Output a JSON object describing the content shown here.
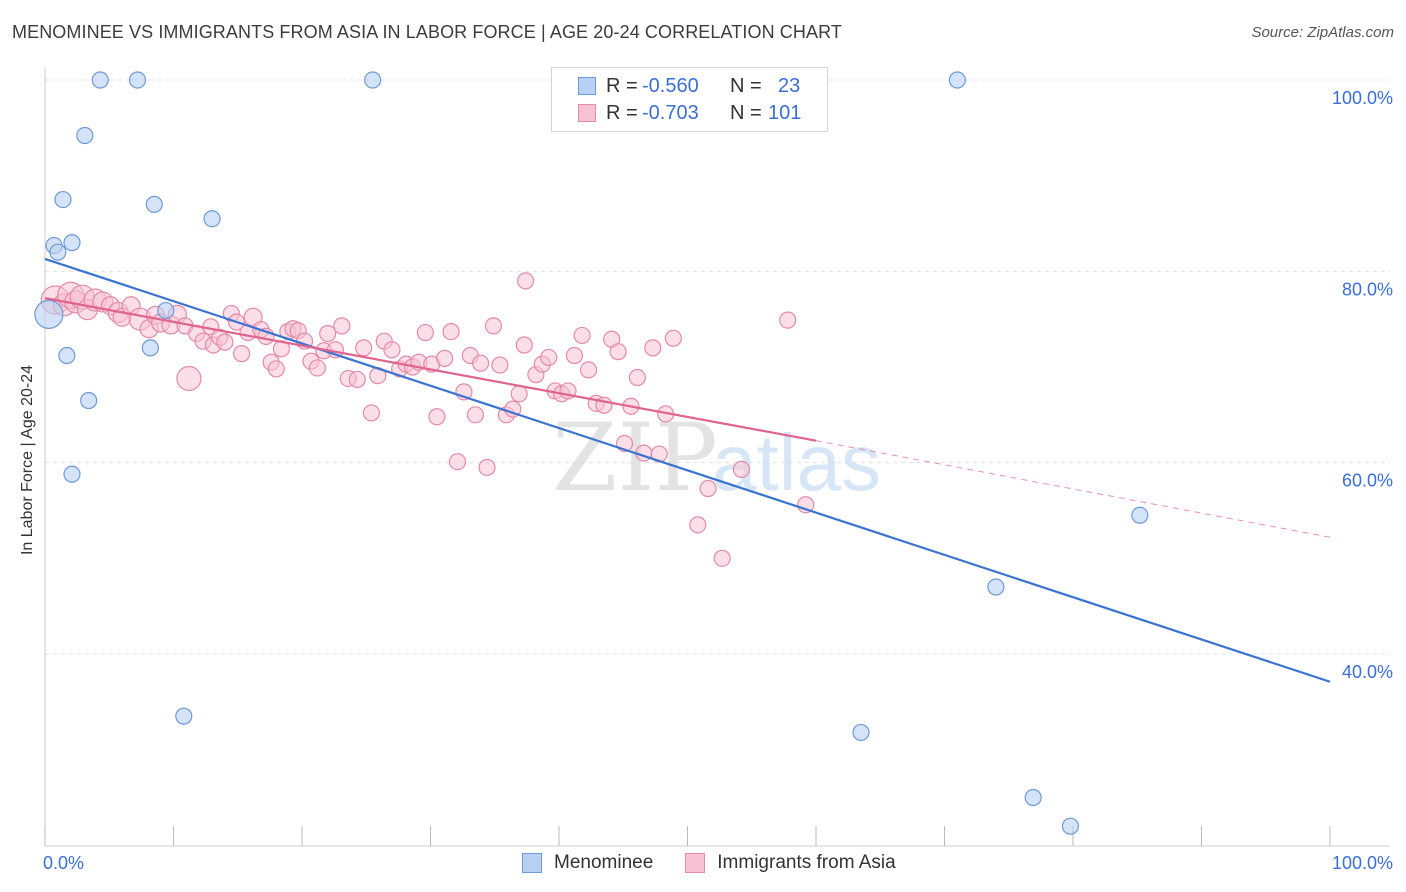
{
  "title": "MENOMINEE VS IMMIGRANTS FROM ASIA IN LABOR FORCE | AGE 20-24 CORRELATION CHART",
  "source": "Source: ZipAtlas.com",
  "watermark": {
    "zip": "ZIP",
    "atlas": "atlas"
  },
  "legend": {
    "series1": {
      "r_label": "R =",
      "r_value": "-0.560",
      "n_label": "N =",
      "n_value": "23"
    },
    "series2": {
      "r_label": "R =",
      "r_value": "-0.703",
      "n_label": "N =",
      "n_value": "101"
    }
  },
  "bottom_legend": {
    "series1": "Menominee",
    "series2": "Immigrants from Asia"
  },
  "colors": {
    "series1_fill": "#b8d0f2",
    "series1_stroke": "#6d9ad8",
    "series1_line": "#3a74d0",
    "series2_fill": "#f7c2d3",
    "series2_stroke": "#e58aa8",
    "series2_line": "#e0648e",
    "axis_text": "#3a6fd8",
    "grid": "#e0e0e0"
  },
  "chart_data": {
    "type": "scatter",
    "title": "MENOMINEE VS IMMIGRANTS FROM ASIA IN LABOR FORCE | AGE 20-24 CORRELATION CHART",
    "xlabel": "",
    "ylabel": "In Labor Force | Age 20-24",
    "xlim": [
      0,
      100
    ],
    "ylim": [
      20,
      102
    ],
    "x_tick_labels": [
      "0.0%",
      "100.0%"
    ],
    "y_ticks": [
      40,
      60,
      80,
      100
    ],
    "y_tick_labels": [
      "40.0%",
      "60.0%",
      "80.0%",
      "100.0%"
    ],
    "grid": true,
    "series": [
      {
        "name": "Menominee",
        "R": -0.56,
        "N": 23,
        "trend": {
          "x": [
            0,
            100
          ],
          "y": [
            81.3,
            37.1
          ],
          "dashed_extension": false
        },
        "points": [
          [
            0.3,
            75.5,
            14
          ],
          [
            0.7,
            82.7,
            8
          ],
          [
            1.0,
            82.0,
            8
          ],
          [
            1.4,
            87.5,
            8
          ],
          [
            2.1,
            83.0,
            8
          ],
          [
            1.7,
            71.2,
            8
          ],
          [
            2.1,
            58.8,
            8
          ],
          [
            3.1,
            94.2,
            8
          ],
          [
            3.4,
            66.5,
            8
          ],
          [
            4.3,
            100.0,
            8
          ],
          [
            7.2,
            100.0,
            8
          ],
          [
            8.2,
            72.0,
            8
          ],
          [
            8.5,
            87.0,
            8
          ],
          [
            9.4,
            75.9,
            8
          ],
          [
            10.8,
            33.5,
            8
          ],
          [
            13.0,
            85.5,
            8
          ],
          [
            25.5,
            100.0,
            8
          ],
          [
            71.0,
            100.0,
            8
          ],
          [
            63.5,
            31.8,
            8
          ],
          [
            74.0,
            47.0,
            8
          ],
          [
            76.9,
            25.0,
            8
          ],
          [
            79.8,
            22.0,
            8
          ],
          [
            85.2,
            54.5,
            8
          ]
        ]
      },
      {
        "name": "Immigrants from Asia",
        "R": -0.703,
        "N": 101,
        "trend": {
          "x": [
            0,
            60,
            100
          ],
          "y": [
            77.2,
            62.3,
            52.2
          ],
          "solid_until_x": 60
        },
        "points": [
          [
            0.8,
            77.0,
            14
          ],
          [
            1.5,
            76.5,
            11
          ],
          [
            2.0,
            77.5,
            13
          ],
          [
            2.4,
            76.8,
            11
          ],
          [
            2.9,
            77.3,
            12
          ],
          [
            3.3,
            76.0,
            10
          ],
          [
            3.9,
            77.0,
            11
          ],
          [
            4.5,
            76.8,
            10
          ],
          [
            5.1,
            76.4,
            9
          ],
          [
            5.7,
            75.7,
            10
          ],
          [
            6.0,
            75.2,
            9
          ],
          [
            6.7,
            76.4,
            9
          ],
          [
            7.4,
            75.0,
            11
          ],
          [
            8.1,
            74.0,
            9
          ],
          [
            8.6,
            75.4,
            9
          ],
          [
            9.0,
            74.6,
            9
          ],
          [
            9.8,
            74.4,
            9
          ],
          [
            10.3,
            75.5,
            9
          ],
          [
            10.9,
            74.3,
            8
          ],
          [
            11.2,
            68.8,
            12
          ],
          [
            11.8,
            73.5,
            8
          ],
          [
            12.3,
            72.7,
            8
          ],
          [
            12.9,
            74.2,
            8
          ],
          [
            13.1,
            72.3,
            8
          ],
          [
            13.6,
            73.1,
            8
          ],
          [
            14.0,
            72.6,
            8
          ],
          [
            14.5,
            75.6,
            8
          ],
          [
            14.9,
            74.7,
            8
          ],
          [
            15.3,
            71.4,
            8
          ],
          [
            15.8,
            73.6,
            8
          ],
          [
            16.2,
            75.2,
            9
          ],
          [
            16.8,
            73.9,
            8
          ],
          [
            17.2,
            73.2,
            8
          ],
          [
            17.6,
            70.5,
            8
          ],
          [
            18.0,
            69.8,
            8
          ],
          [
            18.4,
            71.9,
            8
          ],
          [
            18.9,
            73.7,
            8
          ],
          [
            19.3,
            74.0,
            8
          ],
          [
            19.7,
            73.8,
            8
          ],
          [
            20.2,
            72.7,
            8
          ],
          [
            20.7,
            70.6,
            8
          ],
          [
            21.2,
            69.9,
            8
          ],
          [
            21.7,
            71.7,
            8
          ],
          [
            22.0,
            73.5,
            8
          ],
          [
            22.6,
            71.8,
            8
          ],
          [
            23.1,
            74.3,
            8
          ],
          [
            23.6,
            68.8,
            8
          ],
          [
            24.3,
            68.7,
            8
          ],
          [
            24.8,
            72.0,
            8
          ],
          [
            25.4,
            65.2,
            8
          ],
          [
            25.9,
            69.1,
            8
          ],
          [
            26.4,
            72.7,
            8
          ],
          [
            27.0,
            71.8,
            8
          ],
          [
            27.6,
            69.8,
            8
          ],
          [
            28.1,
            70.3,
            8
          ],
          [
            28.6,
            70.0,
            8
          ],
          [
            29.1,
            70.5,
            8
          ],
          [
            29.6,
            73.6,
            8
          ],
          [
            30.1,
            70.3,
            8
          ],
          [
            30.5,
            64.8,
            8
          ],
          [
            31.1,
            70.9,
            8
          ],
          [
            31.6,
            73.7,
            8
          ],
          [
            32.1,
            60.1,
            8
          ],
          [
            32.6,
            67.4,
            8
          ],
          [
            33.1,
            71.2,
            8
          ],
          [
            33.5,
            65.0,
            8
          ],
          [
            33.9,
            70.4,
            8
          ],
          [
            34.4,
            59.5,
            8
          ],
          [
            34.9,
            74.3,
            8
          ],
          [
            35.4,
            70.2,
            8
          ],
          [
            35.9,
            65.0,
            8
          ],
          [
            36.4,
            65.6,
            8
          ],
          [
            36.9,
            67.2,
            8
          ],
          [
            37.3,
            72.3,
            8
          ],
          [
            38.2,
            69.2,
            8
          ],
          [
            38.7,
            70.3,
            8
          ],
          [
            39.2,
            71.0,
            8
          ],
          [
            39.7,
            67.5,
            8
          ],
          [
            40.2,
            67.2,
            8
          ],
          [
            40.7,
            67.5,
            8
          ],
          [
            41.2,
            71.2,
            8
          ],
          [
            41.8,
            73.3,
            8
          ],
          [
            42.3,
            69.7,
            8
          ],
          [
            42.9,
            66.2,
            8
          ],
          [
            43.5,
            66.0,
            8
          ],
          [
            44.1,
            72.9,
            8
          ],
          [
            44.6,
            71.6,
            8
          ],
          [
            45.1,
            62.0,
            8
          ],
          [
            45.6,
            65.9,
            8
          ],
          [
            46.1,
            68.9,
            8
          ],
          [
            46.6,
            61.0,
            8
          ],
          [
            47.3,
            72.0,
            8
          ],
          [
            47.8,
            60.9,
            8
          ],
          [
            48.3,
            65.1,
            8
          ],
          [
            48.9,
            73.0,
            8
          ],
          [
            37.4,
            79.0,
            8
          ],
          [
            50.8,
            53.5,
            8
          ],
          [
            51.6,
            57.3,
            8
          ],
          [
            52.7,
            50.0,
            8
          ],
          [
            54.2,
            59.3,
            8
          ],
          [
            57.8,
            74.9,
            8
          ],
          [
            59.2,
            55.6,
            8
          ]
        ]
      }
    ]
  }
}
